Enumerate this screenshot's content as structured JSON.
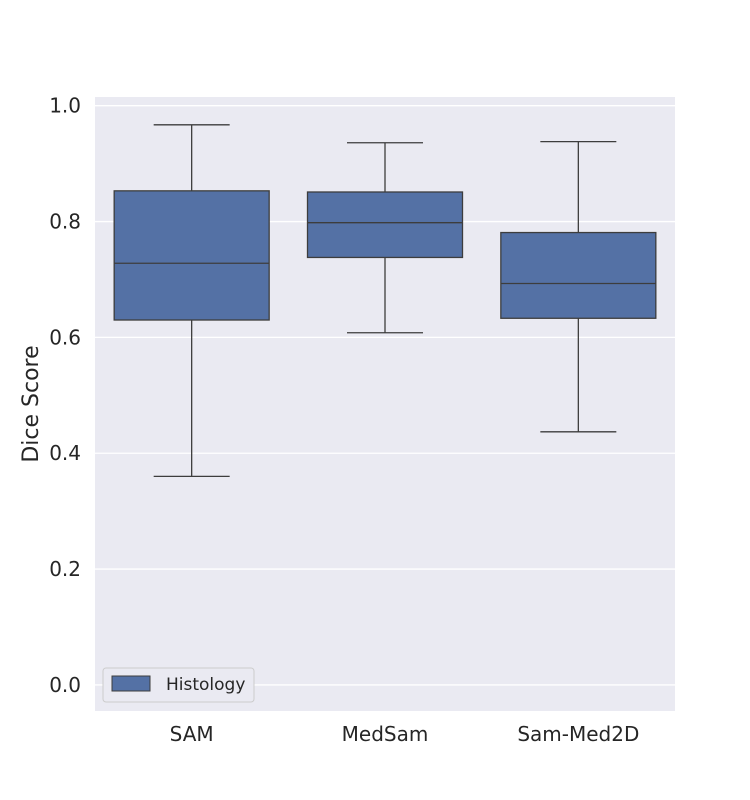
{
  "chart_data": {
    "type": "box",
    "categories": [
      "SAM",
      "MedSam",
      "Sam-Med2D"
    ],
    "series": [
      {
        "name": "Histology",
        "color": "#5471a5",
        "boxes": [
          {
            "whisker_low": 0.36,
            "q1": 0.63,
            "median": 0.728,
            "q3": 0.853,
            "whisker_high": 0.967
          },
          {
            "whisker_low": 0.608,
            "q1": 0.738,
            "median": 0.798,
            "q3": 0.851,
            "whisker_high": 0.936
          },
          {
            "whisker_low": 0.437,
            "q1": 0.633,
            "median": 0.693,
            "q3": 0.781,
            "whisker_high": 0.938
          }
        ]
      }
    ],
    "ylabel": "Dice Score",
    "xlabel": "",
    "ylim": [
      -0.045,
      1.015
    ],
    "yticks": [
      "0.0",
      "0.2",
      "0.4",
      "0.6",
      "0.8",
      "1.0"
    ],
    "grid": true,
    "legend_position": "lower-left",
    "colors": {
      "plot_background": "#eaeaf2",
      "grid": "#ffffff",
      "line": "#3d3d3d"
    }
  }
}
